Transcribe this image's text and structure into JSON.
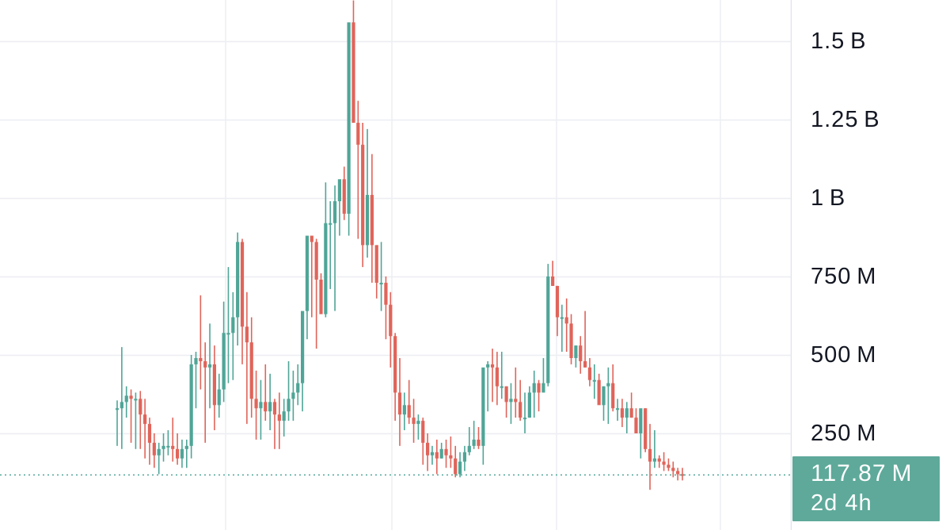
{
  "colors": {
    "up": "#4fa597",
    "down": "#e0645a",
    "grid": "#eceef2",
    "axis_border": "#e0e3eb",
    "last_price_line": "#4fa597",
    "tag_bg": "#5ea99a"
  },
  "price_axis": {
    "ticks": [
      {
        "label": "1.5 B",
        "value": 1500000000
      },
      {
        "label": "1.25 B",
        "value": 1250000000
      },
      {
        "label": "1 B",
        "value": 1000000000
      },
      {
        "label": "750 M",
        "value": 750000000
      },
      {
        "label": "500 M",
        "value": 500000000
      },
      {
        "label": "250 M",
        "value": 250000000
      }
    ]
  },
  "last_price": {
    "value_text": "117.87 M",
    "countdown": "2d 4h"
  },
  "chart_data": {
    "type": "candlestick",
    "y_unit": "USD",
    "ylim": [
      0,
      1650000000
    ],
    "grid": true,
    "last_value": 117870000,
    "candles_in_millions": [
      [
        330,
        355,
        210,
        330
      ],
      [
        330,
        525,
        200,
        350
      ],
      [
        350,
        400,
        300,
        370
      ],
      [
        370,
        390,
        220,
        360
      ],
      [
        360,
        380,
        200,
        360
      ],
      [
        360,
        385,
        200,
        310
      ],
      [
        310,
        360,
        170,
        280
      ],
      [
        280,
        300,
        150,
        220
      ],
      [
        220,
        250,
        140,
        180
      ],
      [
        180,
        220,
        120,
        200
      ],
      [
        200,
        250,
        160,
        210
      ],
      [
        210,
        260,
        180,
        210
      ],
      [
        210,
        300,
        160,
        200
      ],
      [
        200,
        250,
        150,
        170
      ],
      [
        170,
        230,
        140,
        200
      ],
      [
        200,
        230,
        140,
        210
      ],
      [
        210,
        500,
        170,
        470
      ],
      [
        470,
        510,
        330,
        490
      ],
      [
        490,
        690,
        390,
        480
      ],
      [
        480,
        540,
        220,
        460
      ],
      [
        460,
        600,
        330,
        470
      ],
      [
        470,
        530,
        260,
        340
      ],
      [
        340,
        440,
        300,
        390
      ],
      [
        390,
        670,
        350,
        570
      ],
      [
        570,
        780,
        410,
        570
      ],
      [
        570,
        700,
        420,
        620
      ],
      [
        620,
        890,
        530,
        860
      ],
      [
        860,
        870,
        470,
        590
      ],
      [
        590,
        700,
        280,
        540
      ],
      [
        540,
        620,
        300,
        360
      ],
      [
        360,
        450,
        230,
        330
      ],
      [
        330,
        420,
        230,
        350
      ],
      [
        350,
        470,
        290,
        320
      ],
      [
        320,
        440,
        260,
        350
      ],
      [
        350,
        360,
        200,
        310
      ],
      [
        310,
        380,
        200,
        290
      ],
      [
        290,
        360,
        240,
        320
      ],
      [
        320,
        480,
        290,
        360
      ],
      [
        360,
        450,
        290,
        380
      ],
      [
        380,
        470,
        340,
        410
      ],
      [
        410,
        560,
        320,
        640
      ],
      [
        640,
        820,
        550,
        880
      ],
      [
        880,
        880,
        620,
        860
      ],
      [
        860,
        870,
        520,
        740
      ],
      [
        740,
        760,
        630,
        630
      ],
      [
        630,
        1050,
        620,
        920
      ],
      [
        920,
        990,
        710,
        920
      ],
      [
        920,
        1040,
        640,
        990
      ],
      [
        990,
        1050,
        880,
        1060
      ],
      [
        1060,
        1100,
        930,
        950
      ],
      [
        950,
        1430,
        880,
        1560
      ],
      [
        1560,
        1630,
        1410,
        1240
      ],
      [
        1240,
        1310,
        870,
        1170
      ],
      [
        1170,
        1240,
        780,
        850
      ],
      [
        850,
        1220,
        810,
        1010
      ],
      [
        1010,
        1140,
        730,
        850
      ],
      [
        850,
        850,
        680,
        730
      ],
      [
        730,
        860,
        640,
        730
      ],
      [
        730,
        750,
        550,
        660
      ],
      [
        660,
        700,
        460,
        560
      ],
      [
        560,
        570,
        290,
        380
      ],
      [
        380,
        490,
        210,
        310
      ],
      [
        310,
        380,
        260,
        340
      ],
      [
        340,
        420,
        280,
        300
      ],
      [
        300,
        360,
        220,
        280
      ],
      [
        280,
        310,
        230,
        290
      ],
      [
        290,
        300,
        150,
        220
      ],
      [
        220,
        250,
        130,
        180
      ],
      [
        180,
        210,
        150,
        190
      ],
      [
        190,
        230,
        120,
        170
      ],
      [
        170,
        220,
        170,
        200
      ],
      [
        200,
        230,
        140,
        180
      ],
      [
        180,
        240,
        140,
        170
      ],
      [
        170,
        210,
        110,
        120
      ],
      [
        120,
        190,
        110,
        160
      ],
      [
        160,
        210,
        130,
        190
      ],
      [
        190,
        270,
        180,
        210
      ],
      [
        210,
        290,
        200,
        230
      ],
      [
        230,
        270,
        200,
        210
      ],
      [
        210,
        430,
        150,
        460
      ],
      [
        460,
        480,
        320,
        470
      ],
      [
        470,
        520,
        350,
        460
      ],
      [
        460,
        510,
        340,
        400
      ],
      [
        400,
        510,
        360,
        400
      ],
      [
        400,
        400,
        300,
        350
      ],
      [
        350,
        410,
        280,
        360
      ],
      [
        360,
        460,
        300,
        350
      ],
      [
        350,
        420,
        290,
        300
      ],
      [
        300,
        380,
        250,
        300
      ],
      [
        300,
        400,
        300,
        380
      ],
      [
        380,
        450,
        300,
        410
      ],
      [
        410,
        420,
        320,
        380
      ],
      [
        380,
        490,
        380,
        410
      ],
      [
        410,
        790,
        400,
        750
      ],
      [
        750,
        800,
        720,
        720
      ],
      [
        720,
        720,
        560,
        620
      ],
      [
        620,
        660,
        510,
        620
      ],
      [
        620,
        680,
        510,
        600
      ],
      [
        600,
        630,
        470,
        490
      ],
      [
        490,
        530,
        460,
        530
      ],
      [
        530,
        560,
        440,
        480
      ],
      [
        480,
        640,
        460,
        460
      ],
      [
        460,
        490,
        400,
        420
      ],
      [
        420,
        470,
        360,
        420
      ],
      [
        420,
        440,
        400,
        340
      ],
      [
        340,
        400,
        290,
        400
      ],
      [
        400,
        460,
        280,
        410
      ],
      [
        410,
        470,
        320,
        330
      ],
      [
        330,
        360,
        290,
        330
      ],
      [
        330,
        360,
        270,
        300
      ],
      [
        300,
        350,
        250,
        330
      ],
      [
        330,
        380,
        300,
        300
      ],
      [
        300,
        330,
        250,
        250
      ],
      [
        250,
        310,
        170,
        330
      ],
      [
        330,
        330,
        190,
        200
      ],
      [
        200,
        280,
        70,
        160
      ],
      [
        160,
        260,
        140,
        170
      ],
      [
        170,
        180,
        140,
        160
      ],
      [
        160,
        190,
        130,
        150
      ],
      [
        150,
        170,
        130,
        140
      ],
      [
        140,
        160,
        110,
        130
      ],
      [
        130,
        140,
        100,
        120
      ],
      [
        120,
        140,
        100,
        118
      ]
    ]
  }
}
